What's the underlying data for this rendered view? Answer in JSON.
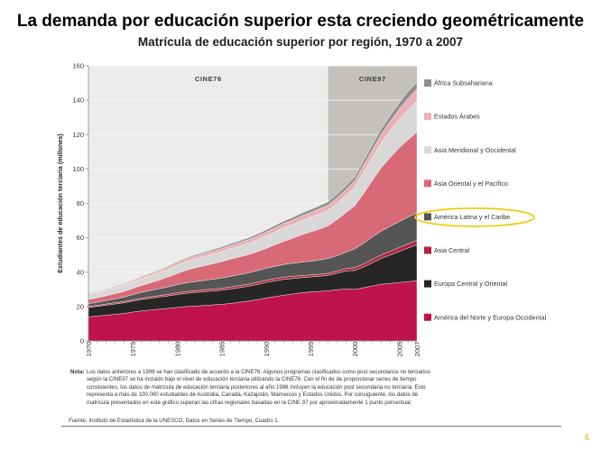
{
  "slide": {
    "title": "La demanda por educación superior esta creciendo geométricamente",
    "subtitle": "Matrícula de educación superior por región, 1970 a 2007",
    "page_number": "6"
  },
  "note": {
    "label": "Nota:",
    "text": "Los datos anteriores a 1998 se han clasificado de acuerdo a la CINE76. Algunos programas clasificados como post secundarios no terciarios según la CINE97 se ha incluido bajo el nivel de educación terciaria utilizando la CINE76. Con el fin de de proporcionar series de tiempo consistentes, los datos de matrícula de educación terciaria posteriores al año 1998 incluyen la educación post secundaria no terciaria. Esto representa a más de 100.000 estudiantes de Australia, Canadá, Kazajstán, Marruecos y Estados Unidos. Por consiguiente, los datos de matrícula presentados en este gráfico superan las cifras regionales basadas en la CINE 97 por aproximadamente 1 punto porcentual."
  },
  "source": {
    "label": "Fuente:",
    "text": "Instituto de Estadística de la UNESCO, Datos en Series de Tiempo, Cuadro 1."
  },
  "colors": {
    "background_cine76": "#ececec",
    "background_cine97": "#c4c1bc",
    "highlight_ellipse": "#f2c800"
  },
  "chart_data": {
    "type": "area",
    "stacked": true,
    "ylabel": "Estudiantes de educación terciaria (millones)",
    "xlabel": "",
    "ylim": [
      0,
      160
    ],
    "xlim": [
      1970,
      2007
    ],
    "yticks": [
      0,
      20,
      40,
      60,
      80,
      100,
      120,
      140,
      160
    ],
    "xticks": [
      1970,
      1975,
      1980,
      1985,
      1990,
      1995,
      2000,
      2005,
      2007
    ],
    "grid": "horizontal",
    "legend_position": "right",
    "periods": [
      {
        "label": "CINE76",
        "from": 1970,
        "to": 1997
      },
      {
        "label": "CINE97",
        "from": 1997,
        "to": 2007
      }
    ],
    "highlighted_series": "América Latina y el Caribe",
    "x": [
      1970,
      1971,
      1972,
      1973,
      1974,
      1975,
      1976,
      1977,
      1978,
      1979,
      1980,
      1981,
      1982,
      1983,
      1984,
      1985,
      1986,
      1987,
      1988,
      1989,
      1990,
      1991,
      1992,
      1993,
      1994,
      1995,
      1996,
      1997,
      1998,
      1999,
      2000,
      2001,
      2002,
      2003,
      2004,
      2005,
      2006,
      2007
    ],
    "series": [
      {
        "name": "América del Norte y Europa Occidental",
        "color": "#c0124f",
        "values": [
          14,
          14.5,
          15,
          15.5,
          16,
          16.8,
          17.5,
          18,
          18.5,
          19,
          19.5,
          20,
          20.3,
          20.6,
          21,
          21.3,
          21.8,
          22.5,
          23.2,
          24,
          25,
          25.8,
          26.6,
          27.3,
          28,
          28.5,
          28.8,
          29.2,
          29.8,
          30.2,
          30,
          31,
          32,
          33,
          33.5,
          34,
          34.5,
          35
        ]
      },
      {
        "name": "Europa Central y Oriental",
        "color": "#262626",
        "values": [
          5.5,
          5.6,
          5.8,
          6,
          6.2,
          6.4,
          6.6,
          6.8,
          7,
          7.2,
          7.5,
          7.7,
          7.9,
          8,
          8.1,
          8.2,
          8.4,
          8.5,
          8.6,
          8.8,
          9,
          9.1,
          9.2,
          9,
          8.8,
          8.7,
          8.8,
          9,
          9.5,
          10.5,
          11,
          12,
          13.5,
          15,
          16.5,
          18,
          19.5,
          21
        ]
      },
      {
        "name": "Asia Central",
        "color": "#b3223e",
        "values": [
          0.6,
          0.6,
          0.7,
          0.7,
          0.7,
          0.8,
          0.8,
          0.8,
          0.9,
          0.9,
          1,
          1,
          1,
          1.1,
          1.1,
          1.1,
          1.2,
          1.2,
          1.2,
          1.3,
          1.3,
          1.3,
          1.3,
          1.3,
          1.2,
          1.2,
          1.2,
          1.2,
          1.3,
          1.4,
          1.6,
          1.8,
          2,
          2.1,
          2.2,
          2.3,
          2.4,
          2.5
        ]
      },
      {
        "name": "América Latina y el Caribe",
        "color": "#555555",
        "values": [
          1.6,
          1.8,
          2,
          2.3,
          2.6,
          3,
          3.4,
          3.8,
          4.1,
          4.4,
          4.8,
          5.1,
          5.3,
          5.5,
          5.7,
          6,
          6.2,
          6.4,
          6.6,
          6.8,
          7,
          7.2,
          7.4,
          7.6,
          7.8,
          8,
          8.3,
          8.6,
          9,
          9.5,
          11,
          12,
          13,
          13.8,
          14.5,
          15,
          15.6,
          16
        ]
      },
      {
        "name": "Asia Oriental y el Pacífico",
        "color": "#d86a78",
        "values": [
          2.5,
          2.6,
          2.8,
          3,
          3.3,
          3.6,
          4,
          4.5,
          5,
          5.8,
          6.5,
          7.3,
          8,
          8.5,
          9,
          9.5,
          10,
          10.3,
          10.6,
          11,
          11.5,
          12.5,
          13.5,
          14.5,
          16,
          17,
          18,
          19,
          21,
          23,
          25,
          29,
          33,
          37,
          40,
          43,
          45,
          47
        ]
      },
      {
        "name": "Asia Meridional y Occidental",
        "color": "#d8d8d8",
        "values": [
          3,
          3.1,
          3.2,
          3.3,
          3.4,
          3.6,
          3.8,
          4,
          4.2,
          4.4,
          4.7,
          5,
          5.2,
          5.4,
          5.6,
          5.8,
          6,
          6.3,
          6.6,
          6.9,
          7.2,
          7.5,
          7.8,
          8,
          8.2,
          8.5,
          8.8,
          9,
          9.5,
          10,
          11,
          12.5,
          13.5,
          14.5,
          15.5,
          16.5,
          17.5,
          18
        ]
      },
      {
        "name": "Estados Árabes",
        "color": "#ebb0b6",
        "values": [
          0.5,
          0.5,
          0.6,
          0.6,
          0.7,
          0.8,
          0.9,
          1,
          1.1,
          1.2,
          1.3,
          1.4,
          1.5,
          1.6,
          1.7,
          1.8,
          1.9,
          2,
          2.1,
          2.2,
          2.3,
          2.4,
          2.5,
          2.6,
          2.7,
          2.8,
          2.9,
          3,
          3.2,
          3.4,
          3.6,
          4,
          4.4,
          5,
          5.6,
          6,
          6.6,
          7
        ]
      },
      {
        "name": "África Subsahariana",
        "color": "#8e8e8e",
        "values": [
          0.3,
          0.3,
          0.3,
          0.4,
          0.4,
          0.4,
          0.5,
          0.5,
          0.5,
          0.6,
          0.7,
          0.7,
          0.8,
          0.8,
          0.9,
          0.9,
          1,
          1,
          1.1,
          1.1,
          1.2,
          1.3,
          1.4,
          1.5,
          1.6,
          1.7,
          1.8,
          1.9,
          2,
          2.1,
          2.2,
          2.5,
          2.8,
          3,
          3.2,
          3.5,
          3.8,
          4
        ]
      }
    ]
  }
}
